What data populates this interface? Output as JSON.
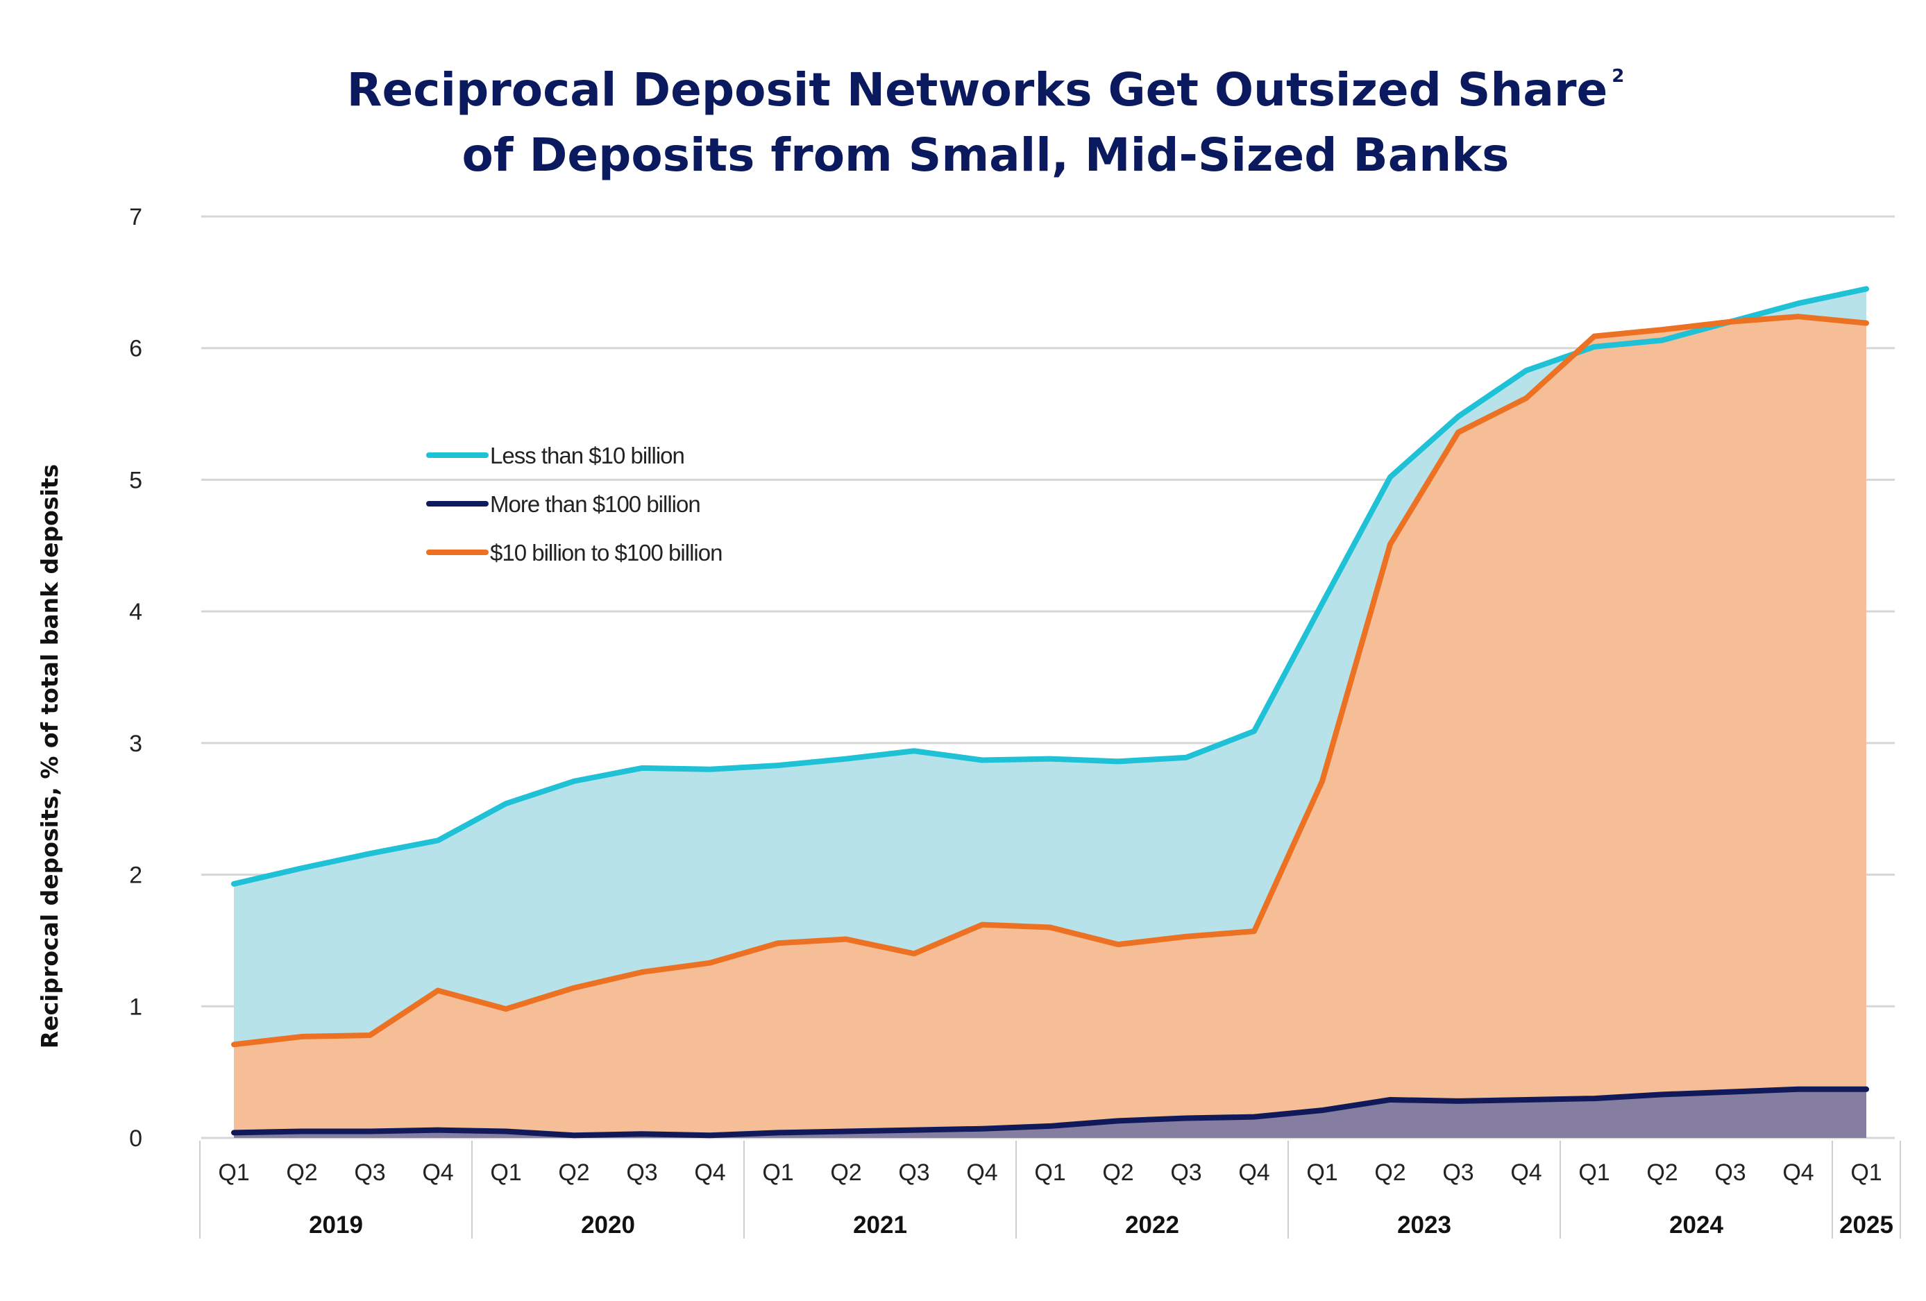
{
  "chart_data": {
    "type": "area",
    "title_line1": "Reciprocal Deposit Networks Get Outsized Share",
    "title_superscript": "2",
    "title_line2": "of Deposits from Small, Mid-Sized Banks",
    "ylabel": "Reciprocal deposits, % of total bank deposits",
    "xlabel": "",
    "ylim": [
      0,
      7
    ],
    "yticks": [
      "0",
      "1",
      "2",
      "3",
      "4",
      "5",
      "6",
      "7"
    ],
    "grid": true,
    "legend_position": "top-left",
    "categories": [
      "Q1",
      "Q2",
      "Q3",
      "Q4",
      "Q1",
      "Q2",
      "Q3",
      "Q4",
      "Q1",
      "Q2",
      "Q3",
      "Q4",
      "Q1",
      "Q2",
      "Q3",
      "Q4",
      "Q1",
      "Q2",
      "Q3",
      "Q4",
      "Q1",
      "Q2",
      "Q3",
      "Q4",
      "Q1"
    ],
    "years": [
      {
        "label": "2019",
        "quarters": 4
      },
      {
        "label": "2020",
        "quarters": 4
      },
      {
        "label": "2021",
        "quarters": 4
      },
      {
        "label": "2022",
        "quarters": 4
      },
      {
        "label": "2023",
        "quarters": 4
      },
      {
        "label": "2024",
        "quarters": 4
      },
      {
        "label": "2025",
        "quarters": 1
      }
    ],
    "series": [
      {
        "name": "Less than $10 billion",
        "color": "#1ec1d6",
        "fill": "#b8e2ea",
        "values": [
          1.93,
          2.05,
          2.16,
          2.26,
          2.54,
          2.71,
          2.81,
          2.8,
          2.83,
          2.88,
          2.94,
          2.87,
          2.88,
          2.86,
          2.89,
          3.09,
          4.06,
          5.02,
          5.48,
          5.83,
          6.01,
          6.06,
          6.2,
          6.34,
          6.45
        ]
      },
      {
        "name": "More than $100 billion",
        "color": "#101a5a",
        "fill": "#857ea1",
        "values": [
          0.04,
          0.05,
          0.05,
          0.06,
          0.05,
          0.02,
          0.03,
          0.02,
          0.04,
          0.05,
          0.06,
          0.07,
          0.09,
          0.13,
          0.15,
          0.16,
          0.21,
          0.29,
          0.28,
          0.29,
          0.3,
          0.33,
          0.35,
          0.37,
          0.37
        ]
      },
      {
        "name": "$10 billion to $100 billion",
        "color": "#ec7122",
        "fill": "#f6be96",
        "values": [
          0.71,
          0.77,
          0.78,
          1.12,
          0.98,
          1.14,
          1.26,
          1.33,
          1.48,
          1.51,
          1.4,
          1.62,
          1.6,
          1.47,
          1.53,
          1.57,
          2.71,
          4.51,
          5.36,
          5.62,
          6.09,
          6.14,
          6.2,
          6.24,
          6.19
        ]
      }
    ]
  }
}
